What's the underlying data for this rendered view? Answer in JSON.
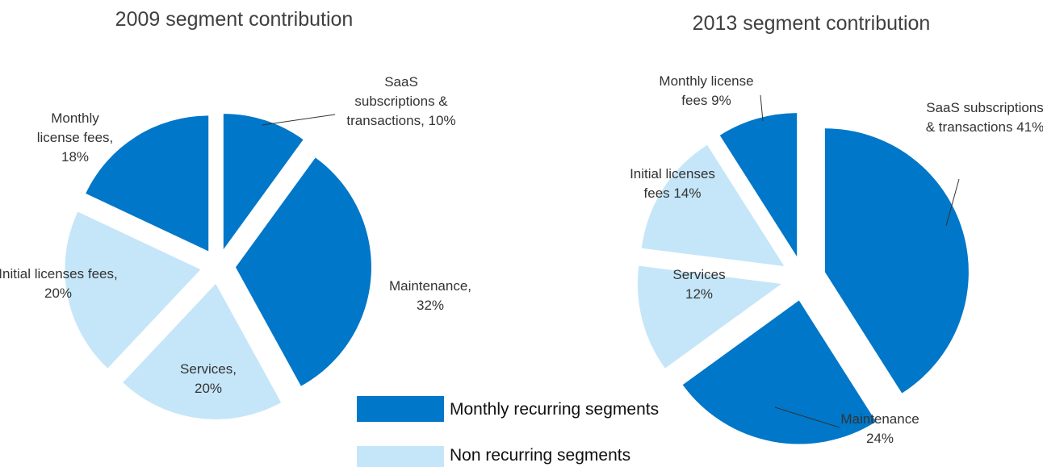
{
  "chart_data": [
    {
      "type": "pie",
      "title": "2009 segment contribution",
      "categories": [
        "SaaS subscriptions & transactions,",
        "Maintenance,",
        "Services,",
        "Initial licenses fees,",
        "Monthly license fees,"
      ],
      "values": [
        10,
        32,
        20,
        20,
        18
      ],
      "value_labels": [
        "10%",
        "32%",
        "20%",
        "20%",
        "18%"
      ],
      "colors": [
        "#0077c8",
        "#0077c8",
        "#c5e6f8",
        "#c5e6f8",
        "#0077c8"
      ]
    },
    {
      "type": "pie",
      "title": "2013 segment contribution",
      "categories": [
        "SaaS subscriptions & transactions",
        "Maintenance",
        "Services",
        "Initial licenses fees",
        "Monthly license fees"
      ],
      "values": [
        41,
        24,
        12,
        14,
        9
      ],
      "value_labels": [
        "41%",
        "24%",
        "12%",
        "14%",
        "9%"
      ],
      "colors": [
        "#0077c8",
        "#0077c8",
        "#c5e6f8",
        "#c5e6f8",
        "#0077c8"
      ]
    }
  ],
  "legend": [
    {
      "name": "Monthly recurring segments",
      "color": "#0077c8"
    },
    {
      "name": "Non recurring segments",
      "color": "#c5e6f8"
    }
  ]
}
